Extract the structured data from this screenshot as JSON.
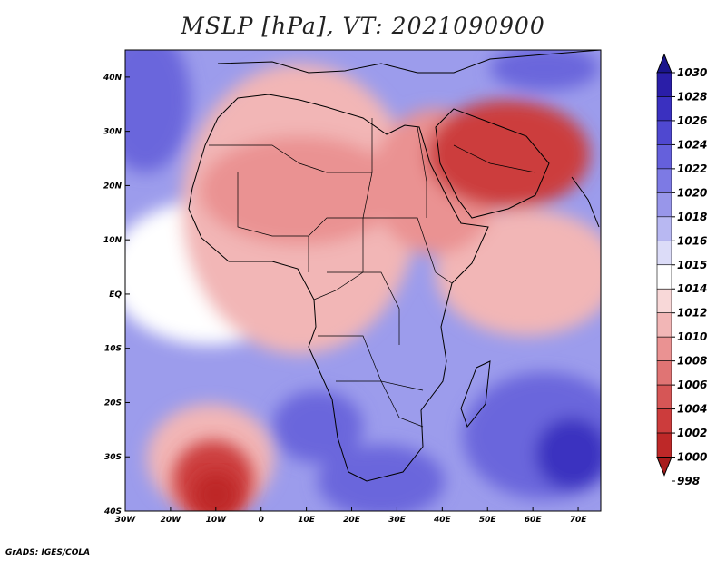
{
  "title": "MSLP [hPa], VT: 2021090900",
  "credit": "GrADS: IGES/COLA",
  "axes": {
    "lat_labels": [
      "40N",
      "30N",
      "20N",
      "10N",
      "EQ",
      "10S",
      "20S",
      "30S",
      "40S"
    ],
    "lon_labels": [
      "30W",
      "20W",
      "10W",
      "0",
      "10E",
      "20E",
      "30E",
      "40E",
      "50E",
      "60E",
      "70E"
    ],
    "lat_range": [
      -40,
      45
    ],
    "lon_range": [
      -30,
      75
    ]
  },
  "colorbar": {
    "levels": [
      "1030",
      "1028",
      "1026",
      "1024",
      "1022",
      "1020",
      "1018",
      "1016",
      "1015",
      "1014",
      "1012",
      "1010",
      "1008",
      "1006",
      "1004",
      "1002",
      "1000",
      "998"
    ],
    "colors": [
      "#1a148c",
      "#2a1ea8",
      "#3a30c0",
      "#4f48d0",
      "#6560dc",
      "#7d7ae4",
      "#9896ea",
      "#b8b8f2",
      "#dcdcf8",
      "#ffffff",
      "#f8d8d8",
      "#f2b6b6",
      "#ea9292",
      "#e07474",
      "#d65656",
      "#cc3c3c",
      "#be2828",
      "#a81c1c"
    ]
  },
  "field_colors": {
    "ocean_high": "#6a66dc",
    "ocean_mid": "#9c9cec",
    "neutral": "#ffffff",
    "land_low": "#f2b6b6",
    "sahara_low": "#ea9292",
    "arabia_low": "#cc3c3c",
    "south_high": "#3a30c0",
    "south_low": "#be2828"
  }
}
